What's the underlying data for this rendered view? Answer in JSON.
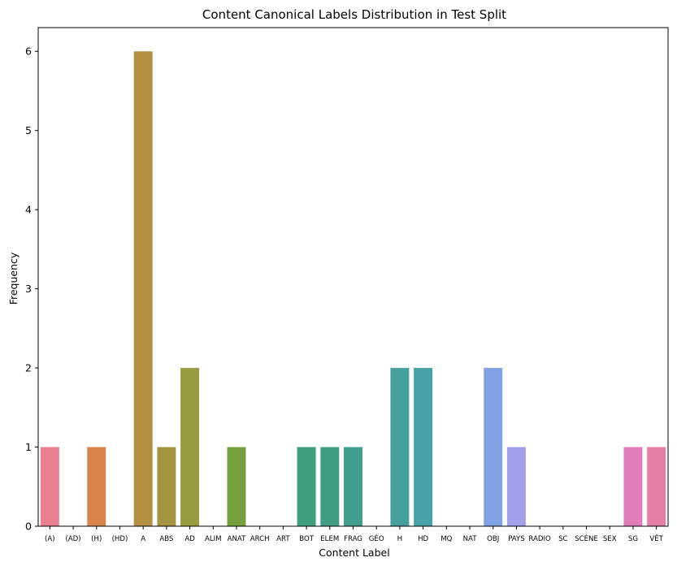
{
  "chart_data": {
    "type": "bar",
    "title": "Content Canonical Labels Distribution in Test Split",
    "xlabel": "Content Label",
    "ylabel": "Frequency",
    "ylim": [
      0,
      6.3
    ],
    "yticks": [
      0,
      1,
      2,
      3,
      4,
      5,
      6
    ],
    "grid": false,
    "legend": "none",
    "categories": [
      "(A)",
      "(AD)",
      "(H)",
      "(HD)",
      "A",
      "ABS",
      "AD",
      "ALIM",
      "ANAT",
      "ARCH",
      "ART",
      "BOT",
      "ELEM",
      "FRAG",
      "GÉO",
      "H",
      "HD",
      "MQ",
      "NAT",
      "OBJ",
      "PAYS",
      "RADIO",
      "SC",
      "SCÈNE",
      "SEX",
      "SG",
      "VÊT"
    ],
    "values": [
      1,
      0,
      1,
      0,
      6,
      1,
      2,
      0,
      1,
      0,
      0,
      1,
      1,
      1,
      0,
      2,
      2,
      0,
      0,
      2,
      1,
      0,
      0,
      0,
      0,
      1,
      1
    ],
    "colors": [
      "#e8808f",
      "#e38067",
      "#d8834a",
      "#c18d3f",
      "#b28f42",
      "#a3943f",
      "#979c3f",
      "#899f3d",
      "#76a03d",
      "#5ea449",
      "#4aa367",
      "#3f9f7c",
      "#3f9d84",
      "#419d8d",
      "#459e93",
      "#45a09c",
      "#47a2a7",
      "#4aa1b8",
      "#5fa2d4",
      "#80a2e3",
      "#a19fea",
      "#bc9be9",
      "#d193e6",
      "#df86db",
      "#e17ccd",
      "#e27cba",
      "#e47ea5"
    ]
  }
}
